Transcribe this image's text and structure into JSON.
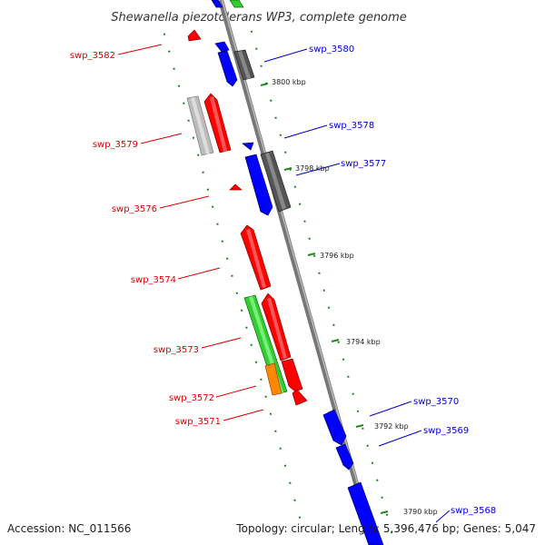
{
  "title": "Shewanella piezotolerans WP3, complete genome",
  "footer": {
    "accession": "Accession: NC_011566",
    "summary": "Topology: circular; Length: 5,396,476 bp; Genes: 5,047"
  },
  "colors": {
    "forward_label": "#0000cc",
    "reverse_label": "#dd0000",
    "backbone": "#888888",
    "tick": "#228822",
    "blue": "#0000ff",
    "red": "#ff0000",
    "green": "#33cc33",
    "orange": "#ff8800",
    "dark_gray": "#666666",
    "light_gray": "#bbbbbb"
  },
  "kbp_labels": [
    "3800 kbp",
    "3798 kbp",
    "3796 kbp",
    "3794 kbp",
    "3792 kbp",
    "3790 kbp"
  ],
  "gene_labels": {
    "forward": [
      "swp_3580",
      "swp_3578",
      "swp_3577",
      "swp_3570",
      "swp_3569",
      "swp_3568"
    ],
    "reverse": [
      "swp_3582",
      "swp_3579",
      "swp_3576",
      "swp_3574",
      "swp_3573",
      "swp_3572",
      "swp_3571"
    ]
  }
}
